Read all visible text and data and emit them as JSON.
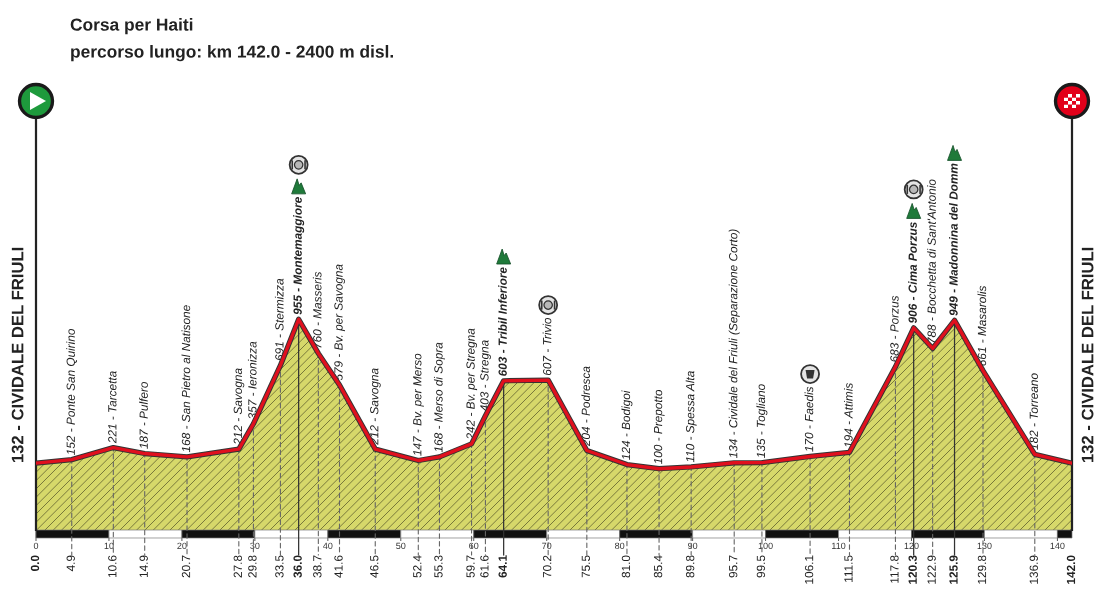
{
  "chart_data": {
    "type": "area",
    "title": "Corsa per Haiti",
    "subtitle": "percorso lungo: km 142.0 - 2400 m disl.",
    "x": [
      0.0,
      4.9,
      10.6,
      14.9,
      20.7,
      27.8,
      29.8,
      33.5,
      36.0,
      38.7,
      41.6,
      46.5,
      52.4,
      55.3,
      59.7,
      61.6,
      64.1,
      70.2,
      75.5,
      81.0,
      85.4,
      89.8,
      95.7,
      99.5,
      106.1,
      111.5,
      117.8,
      120.3,
      122.9,
      125.9,
      129.8,
      136.9,
      142.0
    ],
    "series": [
      {
        "color": "#d6d86a",
        "values": [
          132,
          152,
          221,
          187,
          168,
          212,
          357,
          691,
          955,
          760,
          579,
          212,
          147,
          168,
          242,
          403,
          603,
          607,
          204,
          124,
          100,
          110,
          134,
          135,
          170,
          194,
          683,
          906,
          788,
          949,
          661,
          182,
          132
        ],
        "value_labels": [
          "132 - CIVIDALE DEL FRIULI",
          "152 - Ponte San Quirino",
          "221 - Tarcetta",
          "187 - Pulfero",
          "168 - San Pietro al Natisone",
          "212 - Savogna",
          "357 - Ieronizza",
          "691 - Stermizza",
          "955 - Montemaggiore",
          "760 - Masseris",
          "579 - Bv. per Savogna",
          "212 - Savogna",
          "147 - Bv. per Merso",
          "168 - Merso di Sopra",
          "242 - Bv. per Stregna",
          "403 - Stregna",
          "603 - Tribil Inferiore",
          "607 - Trivio",
          "204 - Podresca",
          "124 - Bodigoi",
          "100 - Prepotto",
          "110 - Spessa Alta",
          "134 - Cividale del Friuli (Separazione Corto)",
          "135 - Togliano",
          "170 - Faedis",
          "194 - Attimis",
          "683 - Porzus",
          "906 - Cima Porzus",
          "788 - Bocchetta di Sant'Antonio",
          "949 - Madonnina del Domm",
          "661 - Masarolis",
          "182 - Torreano",
          "132 - CIVIDALE DEL FRIULI"
        ]
      }
    ],
    "xlim": [
      0,
      142
    ],
    "xticks": [
      0,
      10,
      20,
      30,
      40,
      50,
      60,
      70,
      80,
      90,
      100,
      110,
      120,
      130,
      140
    ],
    "x2lim": [
      0,
      142
    ],
    "x2ticks": [
      {
        "value": 0,
        "label": "0.0"
      },
      4.9,
      10.6,
      14.9,
      20.7,
      27.8,
      29.8,
      33.5,
      {
        "value": 36,
        "label": "36.0"
      },
      38.7,
      41.6,
      46.5,
      52.4,
      55.3,
      59.7,
      61.6,
      64.1,
      70.2,
      75.5,
      {
        "value": 81,
        "label": "81.0"
      },
      85.4,
      89.8,
      95.7,
      99.5,
      106.1,
      111.5,
      117.8,
      120.3,
      122.9,
      125.9,
      129.8,
      136.9,
      {
        "value": 142,
        "label": "142.0"
      }
    ],
    "tick_labels": "x"
  }
}
